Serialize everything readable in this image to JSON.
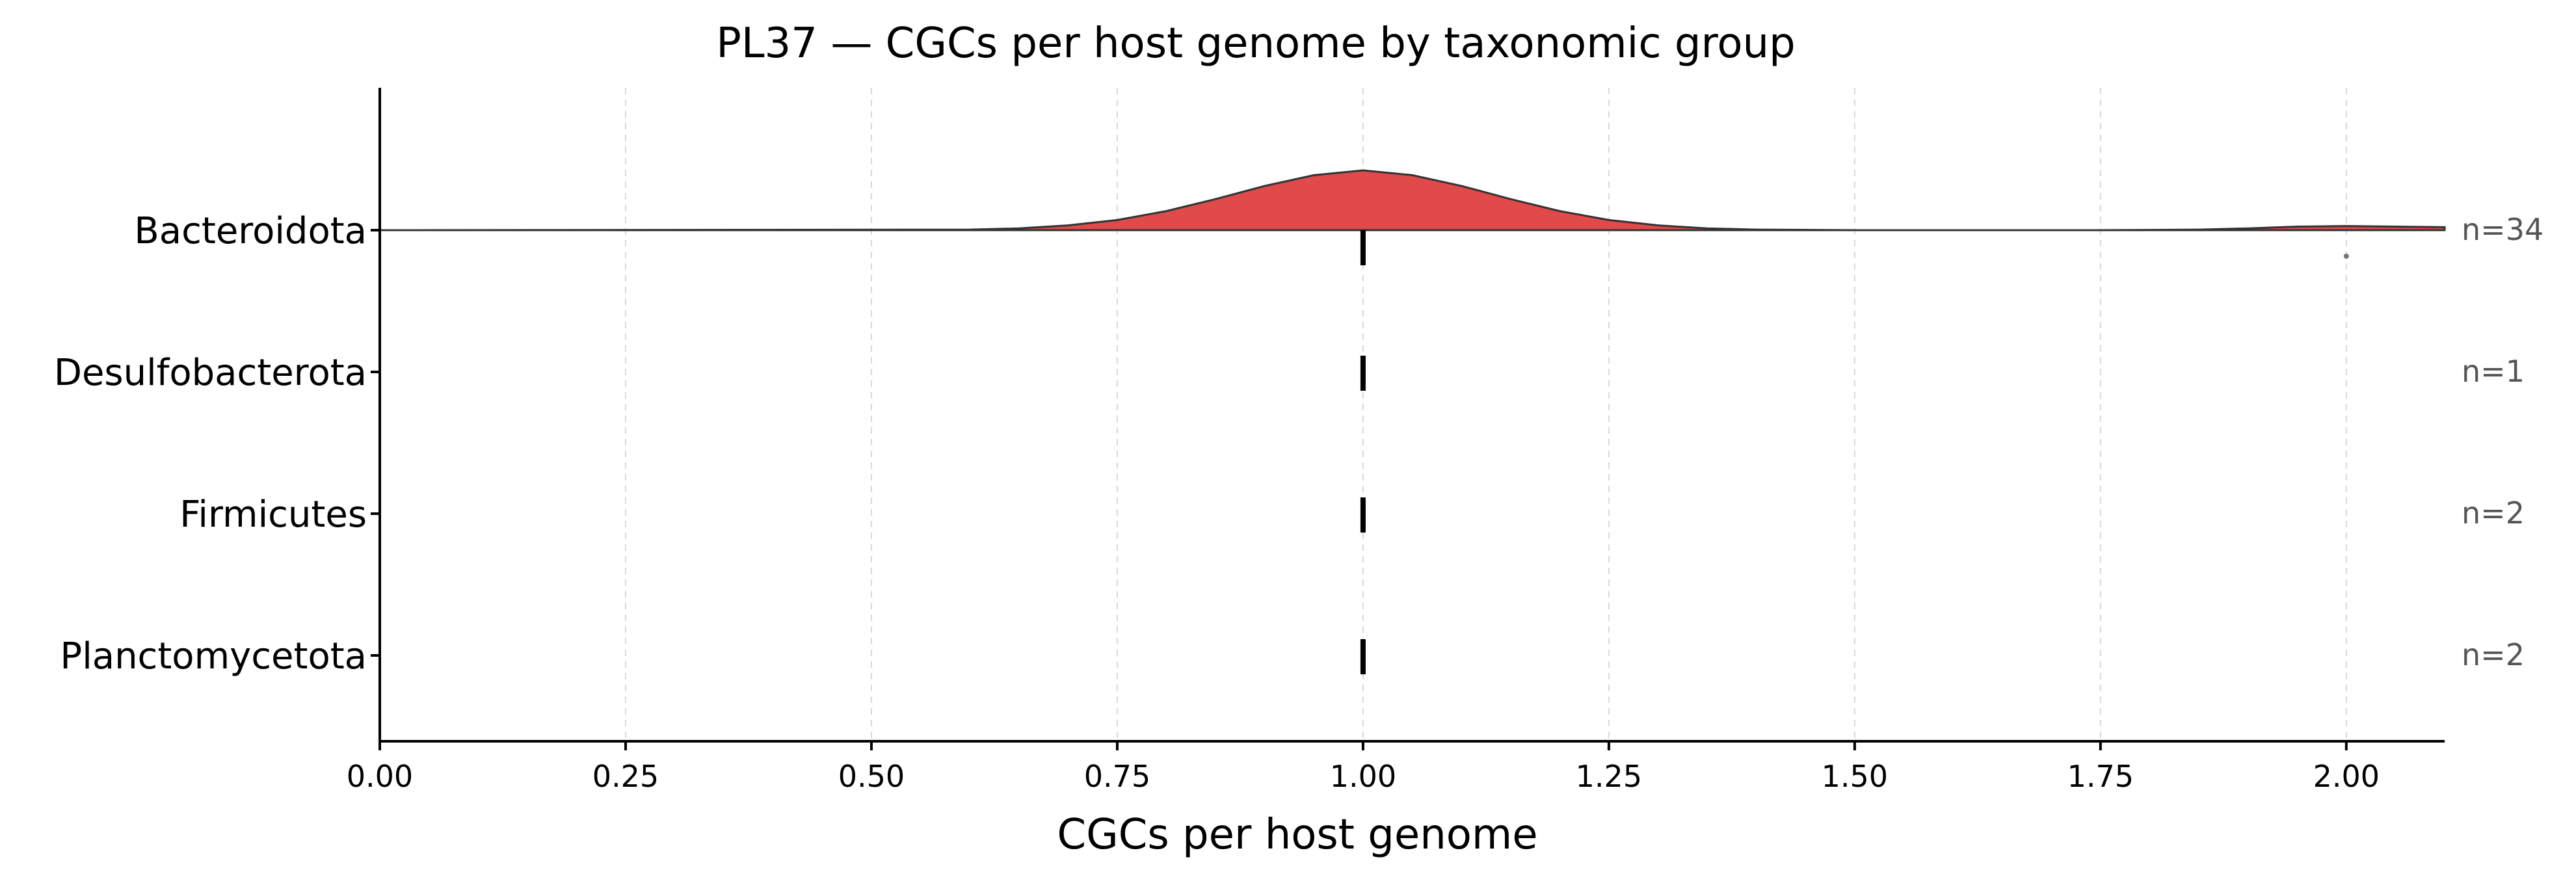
{
  "chart_data": {
    "type": "ridgeline",
    "title": "PL37 — CGCs per host genome by taxonomic group",
    "xlabel": "CGCs per host genome",
    "ylabel": "",
    "xlim": [
      0.0,
      2.1
    ],
    "xticks": [
      "0.00",
      "0.25",
      "0.50",
      "0.75",
      "1.00",
      "1.25",
      "1.50",
      "1.75",
      "2.00"
    ],
    "grid": "vertical dashed",
    "groups": [
      {
        "name": "Bacteroidota",
        "n_label": "n=34",
        "median": 1.0,
        "outliers": [
          2.0
        ],
        "density_color": "#e04a4a",
        "density": {
          "x": [
            0.0,
            0.6,
            0.65,
            0.7,
            0.75,
            0.8,
            0.85,
            0.9,
            0.95,
            1.0,
            1.05,
            1.1,
            1.15,
            1.2,
            1.25,
            1.3,
            1.35,
            1.4,
            1.5,
            1.75,
            1.85,
            1.9,
            1.95,
            2.0,
            2.05,
            2.1
          ],
          "y": [
            0.0,
            0.01,
            0.03,
            0.08,
            0.17,
            0.32,
            0.52,
            0.74,
            0.92,
            1.0,
            0.92,
            0.74,
            0.52,
            0.32,
            0.17,
            0.08,
            0.03,
            0.01,
            0.0,
            0.0,
            0.01,
            0.03,
            0.06,
            0.07,
            0.06,
            0.05
          ]
        }
      },
      {
        "name": "Desulfobacterota",
        "n_label": "n=1",
        "median": 1.0,
        "outliers": []
      },
      {
        "name": "Firmicutes",
        "n_label": "n=2",
        "median": 1.0,
        "outliers": []
      },
      {
        "name": "Planctomycetota",
        "n_label": "n=2",
        "median": 1.0,
        "outliers": []
      }
    ]
  }
}
